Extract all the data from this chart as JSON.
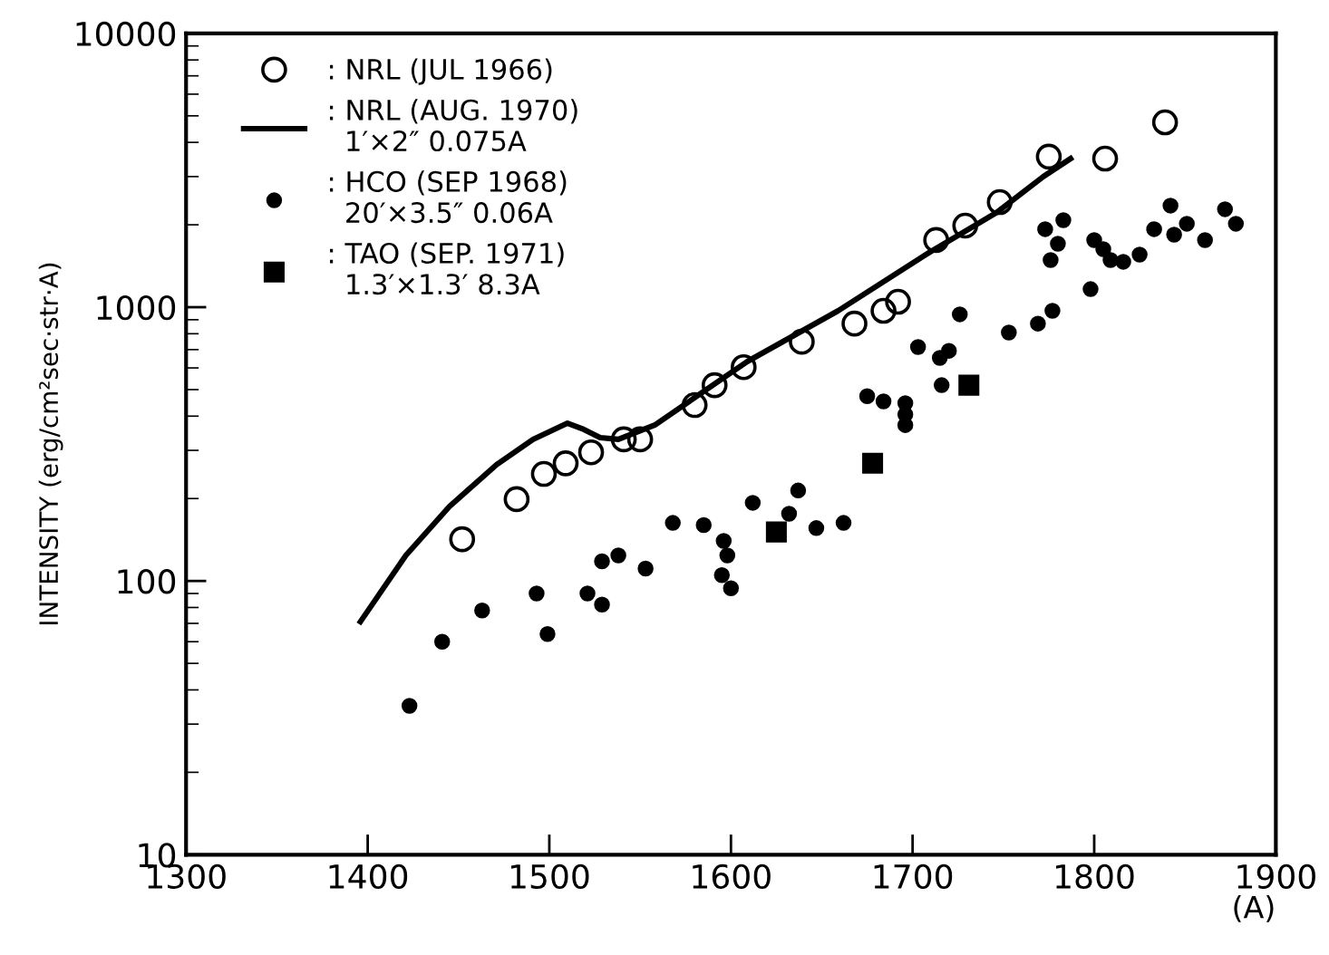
{
  "chart_data": {
    "type": "scatter",
    "xlabel": "(A)",
    "ylabel": "INTENSITY (erg/cm²sec·str·A)",
    "xlim": [
      1300,
      1900
    ],
    "xticks": [
      1300,
      1400,
      1500,
      1600,
      1700,
      1800,
      1900
    ],
    "ylim": [
      10,
      10000
    ],
    "yticks": [
      10,
      100,
      1000,
      10000
    ],
    "log": "y",
    "grid": false,
    "legend": "top left",
    "series": [
      {
        "name": ": NRL (JUL 1966)",
        "marker": "circle",
        "color": "#000000",
        "x": [
          1452,
          1482,
          1497,
          1509,
          1523,
          1541,
          1550,
          1580,
          1591,
          1607,
          1639,
          1668,
          1684,
          1692,
          1713,
          1729,
          1748,
          1775,
          1806,
          1839
        ],
        "values": [
          142,
          199,
          246,
          269,
          295,
          329,
          329,
          439,
          519,
          604,
          748,
          871,
          970,
          1047,
          1759,
          1986,
          2421,
          3548,
          3490,
          4733
        ]
      },
      {
        "name": ": NRL (AUG. 1970)\n  1′×2″ 0.075A",
        "type": "line",
        "marker": "none",
        "color": "#000000",
        "x": [
          1396,
          1421,
          1445,
          1471,
          1491,
          1510,
          1518,
          1528,
          1538,
          1558,
          1609,
          1659,
          1709,
          1746,
          1772,
          1787
        ],
        "values": [
          71,
          124,
          187,
          266,
          329,
          377,
          360,
          334,
          329,
          371,
          633,
          970,
          1581,
          2210,
          3000,
          3490
        ]
      },
      {
        "name": ": HCO (SEP 1968)\n  20′×3.5″ 0.06A",
        "marker": "circle",
        "color": "#000000",
        "x": [
          1423,
          1441,
          1463,
          1493,
          1499,
          1521,
          1529,
          1529,
          1538,
          1553,
          1568,
          1585,
          1596,
          1598,
          1595,
          1600,
          1612,
          1632,
          1637,
          1647,
          1662,
          1675,
          1684,
          1696,
          1696,
          1696,
          1703,
          1715,
          1720,
          1716,
          1726,
          1753,
          1769,
          1777,
          1798,
          1773,
          1783,
          1780,
          1776,
          1800,
          1805,
          1809,
          1816,
          1825,
          1833,
          1842,
          1844,
          1851,
          1861,
          1872,
          1878
        ],
        "values": [
          35,
          60,
          78,
          90,
          64,
          90,
          82,
          118,
          124,
          111,
          163,
          160,
          140,
          124,
          105,
          94,
          193,
          176,
          214,
          156,
          163,
          473,
          453,
          446,
          406,
          371,
          715,
          653,
          693,
          519,
          942,
          808,
          871,
          970,
          1164,
          1928,
          2079,
          1706,
          1486,
          1758,
          1629,
          1486,
          1465,
          1556,
          1928,
          2350,
          1841,
          2018,
          1758,
          2280,
          2018
        ]
      },
      {
        "name": ": TAO (SEP. 1971)\n  1.3′×1.3′ 8.3A",
        "marker": "square",
        "color": "#000000",
        "x": [
          1625,
          1678,
          1731
        ],
        "values": [
          151,
          269,
          519
        ]
      }
    ]
  }
}
